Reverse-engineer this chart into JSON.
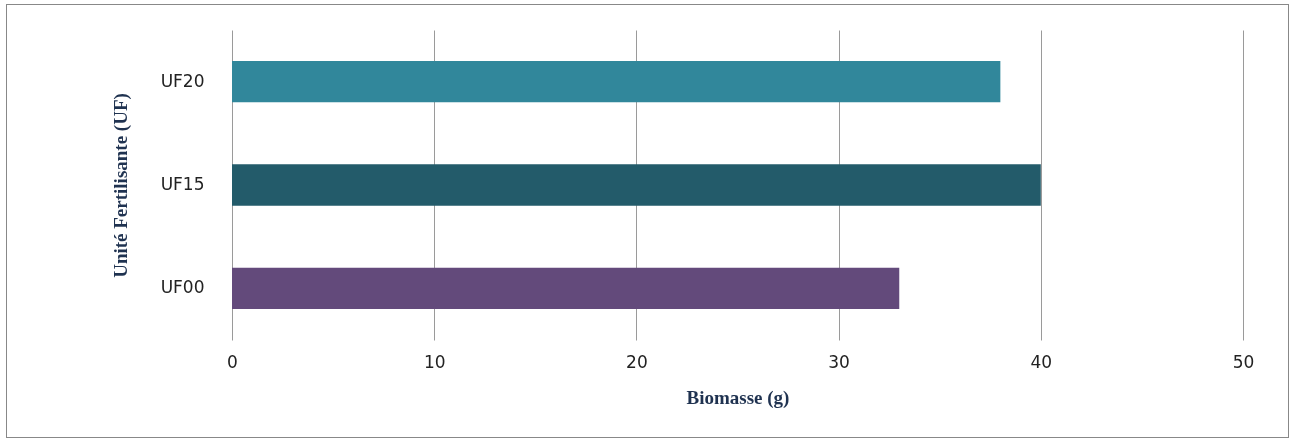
{
  "chart_data": {
    "type": "bar",
    "orientation": "horizontal",
    "categories": [
      "UF20",
      "UF15",
      "UF00"
    ],
    "values": [
      38,
      40,
      33
    ],
    "colors": [
      "#31879b",
      "#235b6a",
      "#634a7b"
    ],
    "xlabel": "Biomasse (g)",
    "ylabel": "Unité Fertilisante (UF)",
    "xlim": [
      0,
      50
    ],
    "xticks": [
      0,
      10,
      20,
      30,
      40,
      50
    ],
    "grid": "x"
  }
}
